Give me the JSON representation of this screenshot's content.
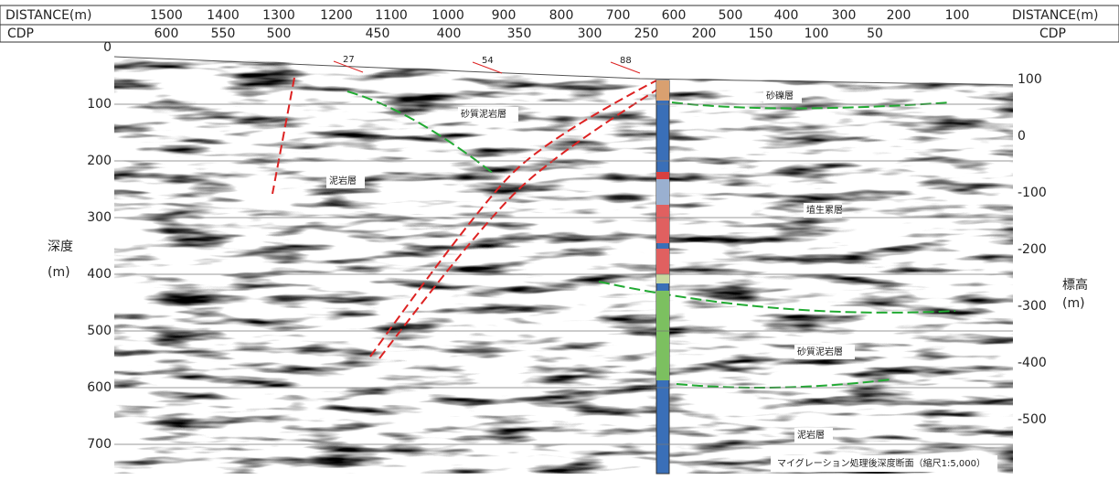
{
  "header": {
    "distance_label": "DISTANCE(m)",
    "distance": [
      1500,
      1400,
      1300,
      1200,
      1100,
      1000,
      900,
      800,
      700,
      600,
      500,
      400,
      300,
      200,
      100
    ],
    "cdp_label": "CDP",
    "cdp": [
      600,
      550,
      500,
      450,
      400,
      350,
      300,
      250,
      200,
      150,
      100,
      50
    ]
  },
  "depth_axis": {
    "label": "深度",
    "unit": "(m)",
    "ticks": [
      0,
      100,
      200,
      300,
      400,
      500,
      600,
      700
    ]
  },
  "elevation_axis": {
    "label": "標高",
    "unit": "(m)",
    "ticks": [
      100,
      0,
      -100,
      -200,
      -300,
      -400,
      -500
    ]
  },
  "dip_annotations": [
    27,
    54,
    88
  ],
  "layers": [
    "砂礫層",
    "砂質泥岩層",
    "泥岩層",
    "埴生累層",
    "砂質泥岩層",
    "泥岩層"
  ],
  "caption": "マイグレーション処理後深度断面（縮尺1:5,000）"
}
